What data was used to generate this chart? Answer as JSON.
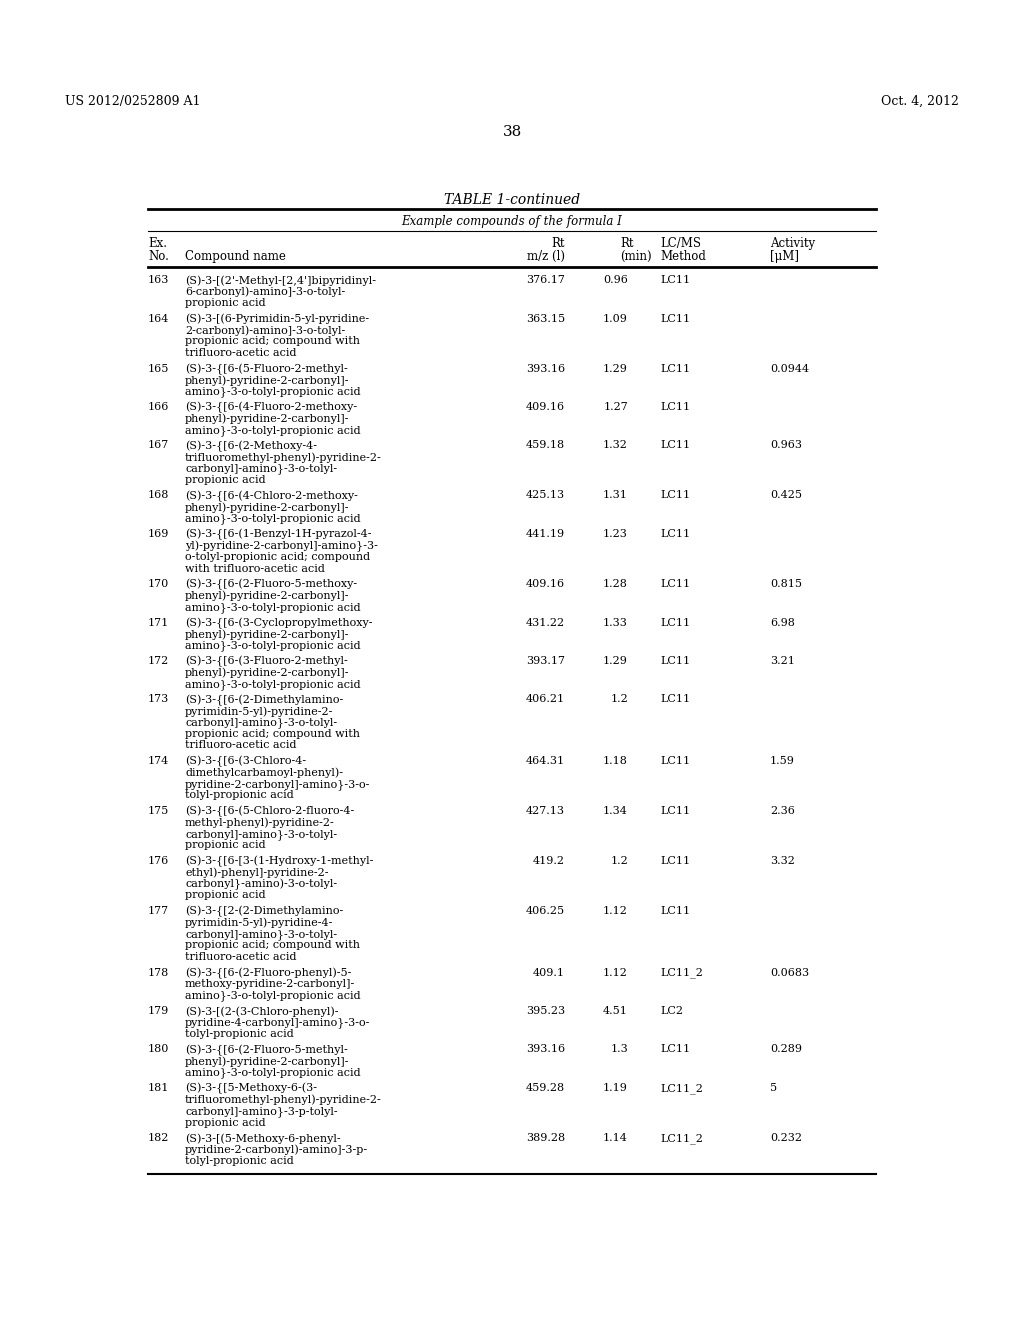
{
  "header_left": "US 2012/0252809 A1",
  "header_right": "Oct. 4, 2012",
  "page_number": "38",
  "table_title": "TABLE 1-continued",
  "table_subtitle": "Example compounds of the formula I",
  "rows": [
    [
      "163",
      "(S)-3-[(2'-Methyl-[2,4']bipyridinyl-\n6-carbonyl)-amino]-3-o-tolyl-\npropionic acid",
      "376.17",
      "0.96",
      "LC11",
      ""
    ],
    [
      "164",
      "(S)-3-[(6-Pyrimidin-5-yl-pyridine-\n2-carbonyl)-amino]-3-o-tolyl-\npropionic acid; compound with\ntrifluoro-acetic acid",
      "363.15",
      "1.09",
      "LC11",
      ""
    ],
    [
      "165",
      "(S)-3-{[6-(5-Fluoro-2-methyl-\nphenyl)-pyridine-2-carbonyl]-\namino}-3-o-tolyl-propionic acid",
      "393.16",
      "1.29",
      "LC11",
      "0.0944"
    ],
    [
      "166",
      "(S)-3-{[6-(4-Fluoro-2-methoxy-\nphenyl)-pyridine-2-carbonyl]-\namino}-3-o-tolyl-propionic acid",
      "409.16",
      "1.27",
      "LC11",
      ""
    ],
    [
      "167",
      "(S)-3-{[6-(2-Methoxy-4-\ntrifluoromethyl-phenyl)-pyridine-2-\ncarbonyl]-amino}-3-o-tolyl-\npropionic acid",
      "459.18",
      "1.32",
      "LC11",
      "0.963"
    ],
    [
      "168",
      "(S)-3-{[6-(4-Chloro-2-methoxy-\nphenyl)-pyridine-2-carbonyl]-\namino}-3-o-tolyl-propionic acid",
      "425.13",
      "1.31",
      "LC11",
      "0.425"
    ],
    [
      "169",
      "(S)-3-{[6-(1-Benzyl-1H-pyrazol-4-\nyl)-pyridine-2-carbonyl]-amino}-3-\no-tolyl-propionic acid; compound\nwith trifluoro-acetic acid",
      "441.19",
      "1.23",
      "LC11",
      ""
    ],
    [
      "170",
      "(S)-3-{[6-(2-Fluoro-5-methoxy-\nphenyl)-pyridine-2-carbonyl]-\namino}-3-o-tolyl-propionic acid",
      "409.16",
      "1.28",
      "LC11",
      "0.815"
    ],
    [
      "171",
      "(S)-3-{[6-(3-Cyclopropylmethoxy-\nphenyl)-pyridine-2-carbonyl]-\namino}-3-o-tolyl-propionic acid",
      "431.22",
      "1.33",
      "LC11",
      "6.98"
    ],
    [
      "172",
      "(S)-3-{[6-(3-Fluoro-2-methyl-\nphenyl)-pyridine-2-carbonyl]-\namino}-3-o-tolyl-propionic acid",
      "393.17",
      "1.29",
      "LC11",
      "3.21"
    ],
    [
      "173",
      "(S)-3-{[6-(2-Dimethylamino-\npyrimidin-5-yl)-pyridine-2-\ncarbonyl]-amino}-3-o-tolyl-\npropionic acid; compound with\ntrifluoro-acetic acid",
      "406.21",
      "1.2",
      "LC11",
      ""
    ],
    [
      "174",
      "(S)-3-{[6-(3-Chloro-4-\ndimethylcarbamoyl-phenyl)-\npyridine-2-carbonyl]-amino}-3-o-\ntolyl-propionic acid",
      "464.31",
      "1.18",
      "LC11",
      "1.59"
    ],
    [
      "175",
      "(S)-3-{[6-(5-Chloro-2-fluoro-4-\nmethyl-phenyl)-pyridine-2-\ncarbonyl]-amino}-3-o-tolyl-\npropionic acid",
      "427.13",
      "1.34",
      "LC11",
      "2.36"
    ],
    [
      "176",
      "(S)-3-{[6-[3-(1-Hydroxy-1-methyl-\nethyl)-phenyl]-pyridine-2-\ncarbonyl}-amino)-3-o-tolyl-\npropionic acid",
      "419.2",
      "1.2",
      "LC11",
      "3.32"
    ],
    [
      "177",
      "(S)-3-{[2-(2-Dimethylamino-\npyrimidin-5-yl)-pyridine-4-\ncarbonyl]-amino}-3-o-tolyl-\npropionic acid; compound with\ntrifluoro-acetic acid",
      "406.25",
      "1.12",
      "LC11",
      ""
    ],
    [
      "178",
      "(S)-3-{[6-(2-Fluoro-phenyl)-5-\nmethoxy-pyridine-2-carbonyl]-\namino}-3-o-tolyl-propionic acid",
      "409.1",
      "1.12",
      "LC11_2",
      "0.0683"
    ],
    [
      "179",
      "(S)-3-[(2-(3-Chloro-phenyl)-\npyridine-4-carbonyl]-amino}-3-o-\ntolyl-propionic acid",
      "395.23",
      "4.51",
      "LC2",
      ""
    ],
    [
      "180",
      "(S)-3-{[6-(2-Fluoro-5-methyl-\nphenyl)-pyridine-2-carbonyl]-\namino}-3-o-tolyl-propionic acid",
      "393.16",
      "1.3",
      "LC11",
      "0.289"
    ],
    [
      "181",
      "(S)-3-{[5-Methoxy-6-(3-\ntrifluoromethyl-phenyl)-pyridine-2-\ncarbonyl]-amino}-3-p-tolyl-\npropionic acid",
      "459.28",
      "1.19",
      "LC11_2",
      "5"
    ],
    [
      "182",
      "(S)-3-[(5-Methoxy-6-phenyl-\npyridine-2-carbonyl)-amino]-3-p-\ntolyl-propionic acid",
      "389.28",
      "1.14",
      "LC11_2",
      "0.232"
    ]
  ]
}
